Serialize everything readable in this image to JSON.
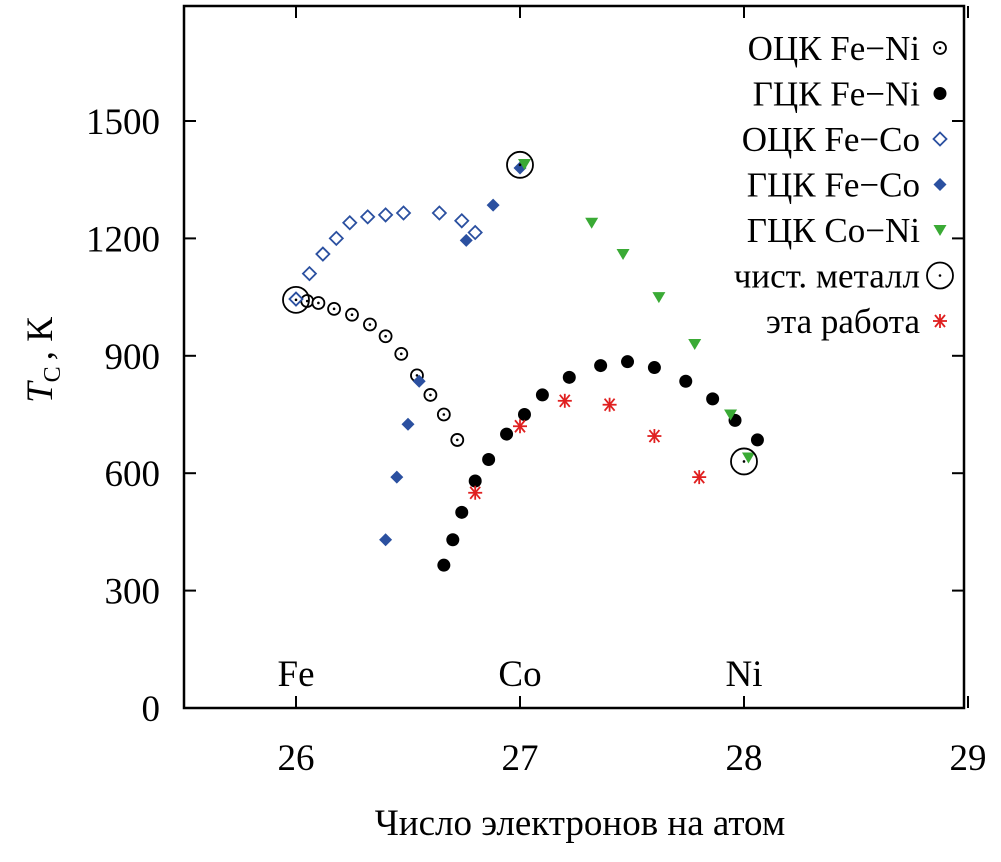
{
  "chart_data": {
    "type": "scatter",
    "title": "",
    "xlabel": "Число электронов на атом",
    "ylabel_main": "T",
    "ylabel_sub": "C",
    "ylabel_unit": ", К",
    "xlim": [
      25.5,
      29
    ],
    "ylim": [
      0,
      1750
    ],
    "xticks": [
      26,
      27,
      28,
      29
    ],
    "yticks": [
      0,
      300,
      600,
      900,
      1200,
      1500
    ],
    "grid": false,
    "legend_position": "top-right",
    "element_labels": [
      {
        "text": "Fe",
        "x": 26.0,
        "y": 90
      },
      {
        "text": "Co",
        "x": 27.0,
        "y": 90
      },
      {
        "text": "Ni",
        "x": 28.0,
        "y": 90
      }
    ],
    "series": [
      {
        "name": "ОЦК Fe−Ni",
        "marker": "circle-dot-open",
        "color": "#000000",
        "points": [
          [
            26.05,
            1040
          ],
          [
            26.1,
            1035
          ],
          [
            26.17,
            1020
          ],
          [
            26.25,
            1005
          ],
          [
            26.33,
            980
          ],
          [
            26.4,
            950
          ],
          [
            26.47,
            905
          ],
          [
            26.54,
            850
          ],
          [
            26.6,
            800
          ],
          [
            26.66,
            750
          ],
          [
            26.72,
            685
          ]
        ]
      },
      {
        "name": "ГЦК Fe−Ni",
        "marker": "circle-filled",
        "color": "#000000",
        "points": [
          [
            26.66,
            365
          ],
          [
            26.7,
            430
          ],
          [
            26.74,
            500
          ],
          [
            26.8,
            580
          ],
          [
            26.86,
            635
          ],
          [
            26.94,
            700
          ],
          [
            27.02,
            750
          ],
          [
            27.1,
            800
          ],
          [
            27.22,
            845
          ],
          [
            27.36,
            875
          ],
          [
            27.48,
            885
          ],
          [
            27.6,
            870
          ],
          [
            27.74,
            835
          ],
          [
            27.86,
            790
          ],
          [
            27.96,
            735
          ],
          [
            28.06,
            685
          ]
        ]
      },
      {
        "name": "ОЦК Fe−Co",
        "marker": "diamond-open",
        "color": "#2b50a0",
        "points": [
          [
            26.0,
            1045
          ],
          [
            26.06,
            1110
          ],
          [
            26.12,
            1160
          ],
          [
            26.18,
            1200
          ],
          [
            26.24,
            1240
          ],
          [
            26.32,
            1255
          ],
          [
            26.4,
            1260
          ],
          [
            26.48,
            1265
          ],
          [
            26.64,
            1265
          ],
          [
            26.74,
            1245
          ],
          [
            26.8,
            1215
          ]
        ]
      },
      {
        "name": "ГЦК Fe−Co",
        "marker": "diamond-filled",
        "color": "#2b50a0",
        "points": [
          [
            26.4,
            430
          ],
          [
            26.45,
            590
          ],
          [
            26.5,
            725
          ],
          [
            26.55,
            835
          ],
          [
            26.76,
            1195
          ],
          [
            26.88,
            1285
          ],
          [
            27.0,
            1380
          ]
        ]
      },
      {
        "name": "ГЦК Co−Ni",
        "marker": "triangle-down-filled",
        "color": "#3aaa35",
        "points": [
          [
            27.02,
            1390
          ],
          [
            27.32,
            1240
          ],
          [
            27.46,
            1160
          ],
          [
            27.62,
            1050
          ],
          [
            27.78,
            930
          ],
          [
            27.94,
            750
          ],
          [
            28.02,
            640
          ]
        ]
      },
      {
        "name": "чист. металл",
        "marker": "circle-big-open",
        "color": "#000000",
        "points": [
          [
            26.0,
            1043
          ],
          [
            27.0,
            1388
          ],
          [
            28.0,
            630
          ]
        ]
      },
      {
        "name": "эта работа",
        "marker": "asterisk",
        "color": "#e02020",
        "points": [
          [
            26.8,
            550
          ],
          [
            27.0,
            720
          ],
          [
            27.2,
            785
          ],
          [
            27.4,
            775
          ],
          [
            27.6,
            695
          ],
          [
            27.8,
            590
          ]
        ]
      }
    ]
  }
}
